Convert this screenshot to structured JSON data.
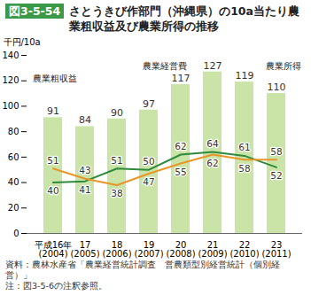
{
  "chart_data": {
    "type": "bar",
    "title": "図3-5-54 さとうきび作部門（沖縄県）の10a当たり農業粗収益及び農業所得の推移",
    "y_label": "千円/10a",
    "categories": [
      "平成16年\n(2004)",
      "17\n(2005)",
      "18\n(2006)",
      "19\n(2007)",
      "20\n(2008)",
      "21\n(2009)",
      "22\n(2010)",
      "23\n(2011)"
    ],
    "series": [
      {
        "name": "農業粗収益",
        "type": "bar",
        "color": "#c9e4a6",
        "values": [
          91,
          84,
          90,
          97,
          117,
          127,
          119,
          110
        ]
      },
      {
        "name": "農業経営費",
        "type": "line",
        "color": "#2f8a3c",
        "values": [
          40,
          41,
          51,
          50,
          62,
          64,
          61,
          52
        ]
      },
      {
        "name": "農業所得",
        "type": "line",
        "color": "#e8962a",
        "values": [
          51,
          43,
          38,
          47,
          55,
          62,
          58,
          58
        ]
      }
    ],
    "ylim": [
      0,
      140
    ],
    "yticks": [
      0,
      20,
      40,
      60,
      80,
      100,
      120,
      140
    ],
    "grid": false,
    "data_labels": true,
    "notes": [
      "資料：農林水産省「農業経営統計調査　営農類型別経営統計（個別経営）」",
      "注：図3-5-6の注釈参照。"
    ]
  }
}
